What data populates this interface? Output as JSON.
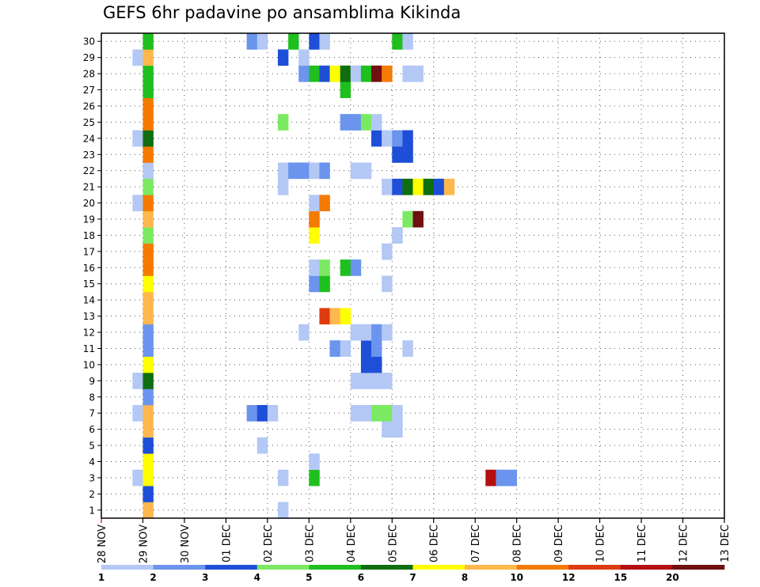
{
  "chart_data": {
    "type": "heatmap",
    "title": "GEFS 6hr padavine po ansamblima Kikinda",
    "xlabel": "",
    "ylabel": "",
    "x_tick_labels": [
      "28 NOV",
      "29 NOV",
      "30 NOV",
      "01 DEC",
      "02 DEC",
      "03 DEC",
      "04 DEC",
      "05 DEC",
      "06 DEC",
      "07 DEC",
      "08 DEC",
      "09 DEC",
      "10 DEC",
      "11 DEC",
      "12 DEC",
      "13 DEC"
    ],
    "y_tick_labels": [
      "1",
      "2",
      "3",
      "4",
      "5",
      "6",
      "7",
      "8",
      "9",
      "10",
      "11",
      "12",
      "13",
      "14",
      "15",
      "16",
      "17",
      "18",
      "19",
      "20",
      "21",
      "22",
      "23",
      "24",
      "25",
      "26",
      "27",
      "28",
      "29",
      "30"
    ],
    "x_unit": "6hr steps from 28 NOV 00Z",
    "grid": true,
    "color_levels": [
      1,
      2,
      3,
      4,
      5,
      6,
      7,
      8,
      10,
      12,
      15,
      20
    ],
    "color_scale": [
      "#b3c8f5",
      "#6a94ed",
      "#1e4fd8",
      "#7bea62",
      "#1fbf1f",
      "#0f6e0f",
      "#ffff00",
      "#ffb84d",
      "#f57a00",
      "#e03a10",
      "#b30f0f",
      "#701010"
    ],
    "colorbar_labels": [
      "1",
      "2",
      "3",
      "4",
      "5",
      "6",
      "7",
      "8",
      "10",
      "12",
      "15",
      "20"
    ],
    "series": [
      {
        "member": 1,
        "cells": [
          [
            4,
            8
          ],
          [
            17,
            1
          ]
        ]
      },
      {
        "member": 2,
        "cells": [
          [
            4,
            3
          ]
        ]
      },
      {
        "member": 3,
        "cells": [
          [
            3,
            1
          ],
          [
            4,
            7
          ],
          [
            17,
            1
          ],
          [
            20,
            5
          ],
          [
            37,
            11
          ],
          [
            38,
            2
          ],
          [
            39,
            2
          ]
        ]
      },
      {
        "member": 4,
        "cells": [
          [
            4,
            7
          ],
          [
            20,
            1
          ]
        ]
      },
      {
        "member": 5,
        "cells": [
          [
            4,
            3
          ],
          [
            15,
            1
          ]
        ]
      },
      {
        "member": 6,
        "cells": [
          [
            4,
            8
          ],
          [
            27,
            1
          ],
          [
            28,
            1
          ]
        ]
      },
      {
        "member": 7,
        "cells": [
          [
            3,
            1
          ],
          [
            4,
            8
          ],
          [
            14,
            2
          ],
          [
            15,
            3
          ],
          [
            16,
            1
          ],
          [
            24,
            1
          ],
          [
            25,
            1
          ],
          [
            26,
            4
          ],
          [
            27,
            4
          ],
          [
            28,
            1
          ]
        ]
      },
      {
        "member": 8,
        "cells": [
          [
            4,
            2
          ]
        ]
      },
      {
        "member": 9,
        "cells": [
          [
            3,
            1
          ],
          [
            4,
            6
          ],
          [
            24,
            1
          ],
          [
            25,
            1
          ],
          [
            26,
            1
          ],
          [
            27,
            1
          ]
        ]
      },
      {
        "member": 10,
        "cells": [
          [
            4,
            7
          ],
          [
            25,
            3
          ],
          [
            26,
            3
          ]
        ]
      },
      {
        "member": 11,
        "cells": [
          [
            4,
            2
          ],
          [
            22,
            2
          ],
          [
            23,
            1
          ],
          [
            25,
            3
          ],
          [
            26,
            2
          ],
          [
            29,
            1
          ]
        ]
      },
      {
        "member": 12,
        "cells": [
          [
            4,
            2
          ],
          [
            19,
            1
          ],
          [
            24,
            1
          ],
          [
            25,
            1
          ],
          [
            26,
            2
          ],
          [
            27,
            1
          ]
        ]
      },
      {
        "member": 13,
        "cells": [
          [
            4,
            8
          ],
          [
            21,
            10
          ],
          [
            22,
            8
          ],
          [
            23,
            7
          ]
        ]
      },
      {
        "member": 14,
        "cells": [
          [
            4,
            8
          ]
        ]
      },
      {
        "member": 15,
        "cells": [
          [
            4,
            7
          ],
          [
            20,
            2
          ],
          [
            21,
            5
          ],
          [
            27,
            1
          ]
        ]
      },
      {
        "member": 16,
        "cells": [
          [
            4,
            9
          ],
          [
            20,
            1
          ],
          [
            21,
            4
          ],
          [
            23,
            5
          ],
          [
            24,
            2
          ]
        ]
      },
      {
        "member": 17,
        "cells": [
          [
            4,
            9
          ],
          [
            27,
            1
          ]
        ]
      },
      {
        "member": 18,
        "cells": [
          [
            4,
            4
          ],
          [
            20,
            7
          ],
          [
            28,
            1
          ]
        ]
      },
      {
        "member": 19,
        "cells": [
          [
            4,
            8
          ],
          [
            20,
            9
          ],
          [
            29,
            4
          ],
          [
            30,
            12
          ]
        ]
      },
      {
        "member": 20,
        "cells": [
          [
            3,
            1
          ],
          [
            4,
            9
          ],
          [
            20,
            1
          ],
          [
            21,
            9
          ]
        ]
      },
      {
        "member": 21,
        "cells": [
          [
            4,
            4
          ],
          [
            17,
            1
          ],
          [
            27,
            1
          ],
          [
            28,
            3
          ],
          [
            29,
            6
          ],
          [
            30,
            7
          ],
          [
            31,
            6
          ],
          [
            32,
            3
          ],
          [
            33,
            8
          ]
        ]
      },
      {
        "member": 22,
        "cells": [
          [
            4,
            1
          ],
          [
            17,
            1
          ],
          [
            18,
            2
          ],
          [
            19,
            2
          ],
          [
            20,
            1
          ],
          [
            21,
            2
          ],
          [
            24,
            1
          ],
          [
            25,
            1
          ]
        ]
      },
      {
        "member": 23,
        "cells": [
          [
            4,
            9
          ],
          [
            28,
            3
          ],
          [
            29,
            3
          ]
        ]
      },
      {
        "member": 24,
        "cells": [
          [
            3,
            1
          ],
          [
            4,
            6
          ],
          [
            26,
            3
          ],
          [
            27,
            1
          ],
          [
            28,
            2
          ],
          [
            29,
            3
          ]
        ]
      },
      {
        "member": 25,
        "cells": [
          [
            4,
            9
          ],
          [
            17,
            4
          ],
          [
            23,
            2
          ],
          [
            24,
            2
          ],
          [
            25,
            4
          ],
          [
            26,
            1
          ]
        ]
      },
      {
        "member": 26,
        "cells": [
          [
            4,
            9
          ]
        ]
      },
      {
        "member": 27,
        "cells": [
          [
            4,
            5
          ],
          [
            23,
            5
          ]
        ]
      },
      {
        "member": 28,
        "cells": [
          [
            4,
            5
          ],
          [
            19,
            2
          ],
          [
            20,
            5
          ],
          [
            21,
            3
          ],
          [
            22,
            7
          ],
          [
            23,
            6
          ],
          [
            24,
            1
          ],
          [
            25,
            5
          ],
          [
            26,
            12
          ],
          [
            27,
            9
          ],
          [
            29,
            1
          ],
          [
            30,
            1
          ]
        ]
      },
      {
        "member": 29,
        "cells": [
          [
            3,
            1
          ],
          [
            4,
            8
          ],
          [
            17,
            3
          ],
          [
            19,
            1
          ]
        ]
      },
      {
        "member": 30,
        "cells": [
          [
            4,
            5
          ],
          [
            14,
            2
          ],
          [
            15,
            1
          ],
          [
            18,
            5
          ],
          [
            20,
            3
          ],
          [
            21,
            1
          ],
          [
            28,
            5
          ],
          [
            29,
            1
          ]
        ]
      }
    ]
  }
}
